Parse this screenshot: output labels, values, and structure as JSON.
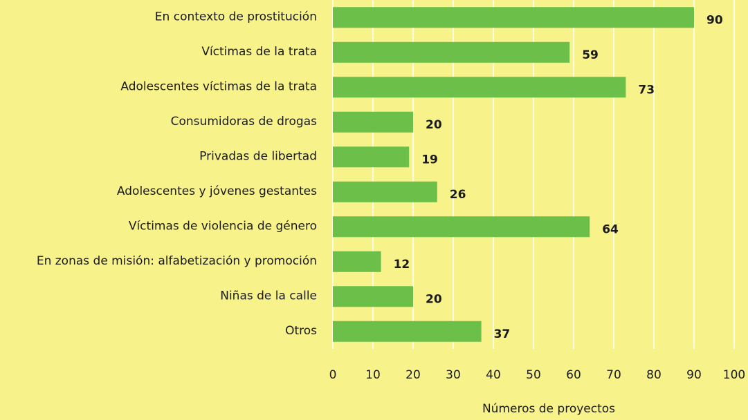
{
  "chart_data": {
    "type": "bar",
    "orientation": "horizontal",
    "categories": [
      "En contexto de prostitución",
      "Víctimas de la trata",
      "Adolescentes víctimas de la trata",
      "Consumidoras de drogas",
      "Privadas de libertad",
      "Adolescentes y jóvenes gestantes",
      "Víctimas de violencia de género",
      "En zonas de misión: alfabetización y promoción",
      "Niñas de la calle",
      "Otros"
    ],
    "values": [
      90,
      59,
      73,
      20,
      19,
      26,
      64,
      12,
      20,
      37
    ],
    "color": "#6cc04a",
    "xlabel": "Números de proyectos",
    "xlim": [
      0,
      100
    ],
    "xticks": [
      0,
      10,
      20,
      30,
      40,
      50,
      60,
      70,
      80,
      90,
      100
    ],
    "grid": true
  }
}
